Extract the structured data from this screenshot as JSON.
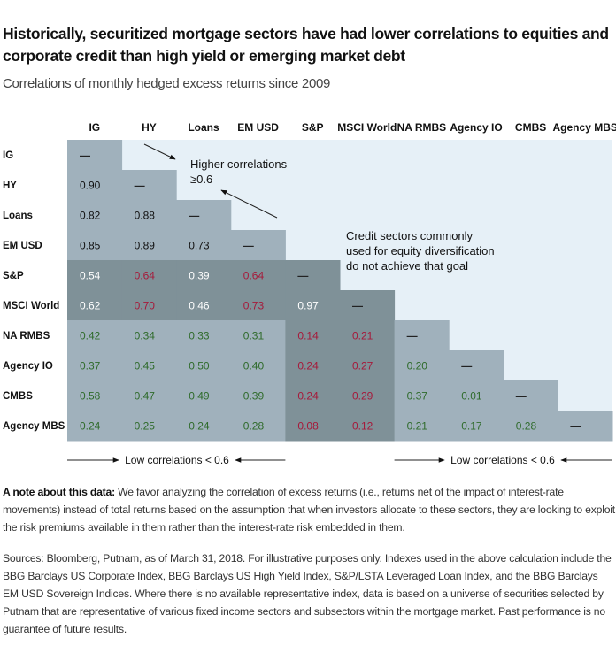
{
  "title": "Historically, securitized mortgage sectors have had lower correlations to equities and corporate credit than high yield or emerging market debt",
  "subtitle": "Correlations of monthly hedged excess returns since 2009",
  "colors": {
    "background_light": "#e6f0f7",
    "cell_medium": "#a0b1bc",
    "cell_dark": "#7f9198",
    "text_red": "#a6193a",
    "text_green": "#2f6b2b",
    "text_dark": "#111111",
    "text_white": "#ffffff"
  },
  "chart_data": {
    "type": "heatmap",
    "title": "Historically, securitized mortgage sectors have had lower correlations to equities and corporate credit than high yield or emerging market debt",
    "subtitle": "Correlations of monthly hedged excess returns since 2009",
    "columns": [
      "IG",
      "HY",
      "Loans",
      "EM USD",
      "S&P",
      "MSCI World",
      "NA RMBS",
      "Agency IO",
      "CMBS",
      "Agency MBS"
    ],
    "rows": [
      "IG",
      "HY",
      "Loans",
      "EM USD",
      "S&P",
      "MSCI World",
      "NA RMBS",
      "Agency IO",
      "CMBS",
      "Agency MBS"
    ],
    "diagonal_label": "—",
    "values": [
      [
        null
      ],
      [
        0.9,
        null
      ],
      [
        0.82,
        0.88,
        null
      ],
      [
        0.85,
        0.89,
        0.73,
        null
      ],
      [
        0.54,
        0.64,
        0.39,
        0.64,
        null
      ],
      [
        0.62,
        0.7,
        0.46,
        0.73,
        0.97,
        null
      ],
      [
        0.42,
        0.34,
        0.33,
        0.31,
        0.14,
        0.21,
        null
      ],
      [
        0.37,
        0.45,
        0.5,
        0.4,
        0.24,
        0.27,
        0.2,
        null
      ],
      [
        0.58,
        0.47,
        0.49,
        0.39,
        0.24,
        0.29,
        0.37,
        0.01,
        null
      ],
      [
        0.24,
        0.25,
        0.24,
        0.28,
        0.08,
        0.12,
        0.21,
        0.17,
        0.28,
        null
      ]
    ],
    "value_format": "0.00",
    "threshold": 0.6,
    "annotations": [
      {
        "text": [
          "Higher correlations",
          "≥0.6"
        ],
        "near": "upper-left block (IG/HY/Loans/EM USD)"
      },
      {
        "text": [
          "Credit sectors commonly",
          "used for equity diversification",
          "do not achieve that goal"
        ],
        "near": "S&P / MSCI World rows"
      },
      {
        "text": "Low correlations < 0.6",
        "span": [
          "IG",
          "EM USD"
        ],
        "position": "bottom"
      },
      {
        "text": "Low correlations < 0.6",
        "span": [
          "NA RMBS",
          "Agency MBS"
        ],
        "position": "bottom"
      }
    ],
    "shading": {
      "equity_rows_or_cols": [
        "S&P",
        "MSCI World"
      ],
      "equity_shade": "dark",
      "other_shade": "medium",
      "upper_triangle": "light"
    },
    "text_color_rules": {
      "credit_block_IG_to_EMUSD": "dark",
      "equity_vs_credit_below_0.6": "white",
      "equity_vs_credit_at_or_above_0.6_HY_EMUSD": "red",
      "mortgage_vs_equity": "red",
      "mortgage_vs_credit_or_mortgage": "green",
      "equity_vs_equity": "white"
    }
  },
  "note": {
    "label": "A note about this data:",
    "text": " We favor analyzing the correlation of excess returns (i.e., returns net of the impact of interest-rate movements) instead of total returns based on the assumption that when investors allocate to these sectors, they are looking to exploit the risk premiums available in them rather than the interest-rate risk embedded in them."
  },
  "sources": "Sources: Bloomberg, Putnam, as of March 31, 2018. For illustrative purposes only. Indexes used in the above calculation include the BBG Barclays US Corporate Index, BBG Barclays US High Yield Index, S&P/LSTA Leveraged Loan Index, and the BBG Barclays EM USD Sovereign Indices. Where there is no available representative index, data is based on a universe of securities selected by Putnam that are representative of various fixed income sectors and subsectors within the mortgage market. Past performance is no guarantee of future results."
}
